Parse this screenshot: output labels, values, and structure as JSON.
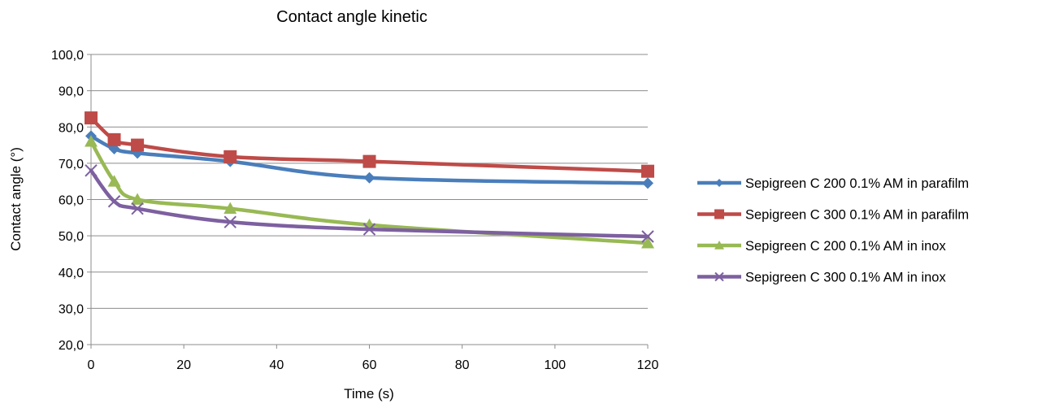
{
  "chart_data": {
    "type": "line",
    "title": "Contact angle kinetic",
    "xlabel": "Time (s)",
    "ylabel": "Contact angle (°)",
    "xlim": [
      0,
      120
    ],
    "ylim": [
      20,
      100
    ],
    "x_ticks": [
      "0",
      "20",
      "40",
      "60",
      "80",
      "100",
      "120"
    ],
    "y_ticks": [
      "20,0",
      "30,0",
      "40,0",
      "50,0",
      "60,0",
      "70,0",
      "80,0",
      "90,0",
      "100,0"
    ],
    "grid": "horizontal",
    "legend_position": "right",
    "x": [
      0,
      5,
      10,
      30,
      60,
      120
    ],
    "series": [
      {
        "name": "Sepigreen C 200 0.1% AM in parafilm",
        "color": "#4a7ebb",
        "marker": "diamond",
        "values": [
          77.5,
          74.0,
          72.8,
          70.5,
          66.0,
          64.5
        ]
      },
      {
        "name": "Sepigreen C 300 0.1% AM in parafilm",
        "color": "#be4b48",
        "marker": "square",
        "values": [
          82.5,
          76.5,
          75.0,
          71.8,
          70.5,
          67.8
        ]
      },
      {
        "name": "Sepigreen C 200 0.1% AM in inox",
        "color": "#98b954",
        "marker": "triangle",
        "values": [
          76.0,
          65.0,
          60.0,
          57.5,
          53.0,
          48.0
        ]
      },
      {
        "name": "Sepigreen C 300 0.1% AM in inox",
        "color": "#7d60a0",
        "marker": "x",
        "values": [
          68.0,
          59.5,
          57.5,
          53.8,
          51.8,
          49.8
        ]
      }
    ]
  }
}
